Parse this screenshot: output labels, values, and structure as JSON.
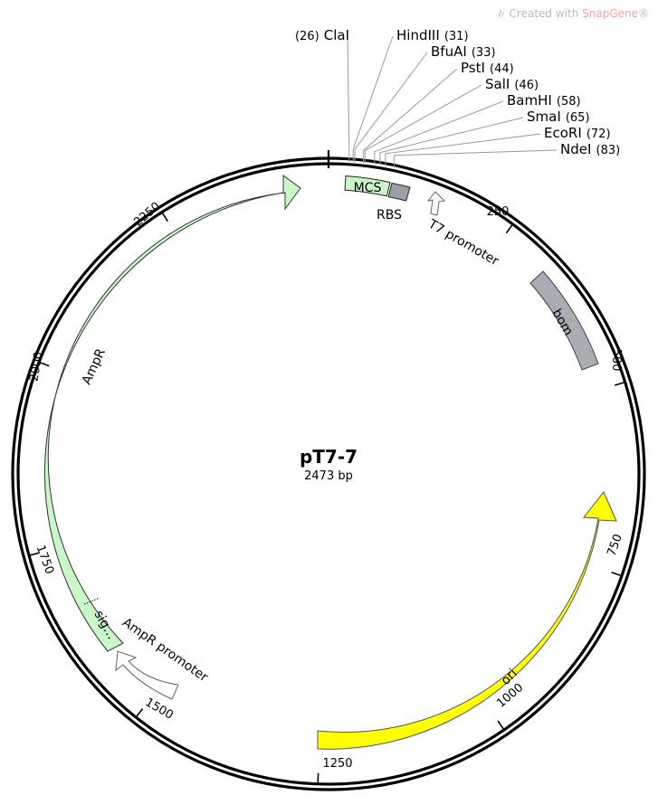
{
  "watermark": {
    "prefix": "Created with ",
    "brand": "SnapGene",
    "suffix": "®"
  },
  "plasmid": {
    "name": "pT7-7",
    "size_label": "2473 bp",
    "length": 2473
  },
  "colors": {
    "mcs": "#c9f3c9",
    "rbs": "#9aa0a6",
    "bom": "#a9adb3",
    "amp": "#c9f7c9",
    "ori": "#ffff00",
    "promoter": "#ffffff"
  },
  "ticks": [
    {
      "pos": 250,
      "label": "250"
    },
    {
      "pos": 500,
      "label": "500"
    },
    {
      "pos": 750,
      "label": "750"
    },
    {
      "pos": 1000,
      "label": "1000"
    },
    {
      "pos": 1250,
      "label": "1250"
    },
    {
      "pos": 1500,
      "label": "1500"
    },
    {
      "pos": 1750,
      "label": "1750"
    },
    {
      "pos": 2000,
      "label": "2000"
    },
    {
      "pos": 2250,
      "label": "2250"
    }
  ],
  "sites": [
    {
      "name": "ClaI",
      "pos": 26,
      "pos_label": "(26)"
    },
    {
      "name": "HindIII",
      "pos": 31,
      "pos_label": "(31)"
    },
    {
      "name": "BfuAI",
      "pos": 33,
      "pos_label": "(33)"
    },
    {
      "name": "PstI",
      "pos": 44,
      "pos_label": "(44)"
    },
    {
      "name": "SalI",
      "pos": 46,
      "pos_label": "(46)"
    },
    {
      "name": "BamHI",
      "pos": 58,
      "pos_label": "(58)"
    },
    {
      "name": "SmaI",
      "pos": 65,
      "pos_label": "(65)"
    },
    {
      "name": "EcoRI",
      "pos": 72,
      "pos_label": "(72)"
    },
    {
      "name": "NdeI",
      "pos": 83,
      "pos_label": "(83)"
    }
  ],
  "features": {
    "mcs": {
      "label": "MCS"
    },
    "rbs": {
      "label": "RBS"
    },
    "t7_promoter": {
      "label": "T7 promoter"
    },
    "bom": {
      "label": "bom"
    },
    "ori": {
      "label": "ori"
    },
    "ampr": {
      "label": "AmpR"
    },
    "ampr_sig": {
      "label": "sig…"
    },
    "ampr_promoter": {
      "label": "AmpR promoter"
    }
  }
}
